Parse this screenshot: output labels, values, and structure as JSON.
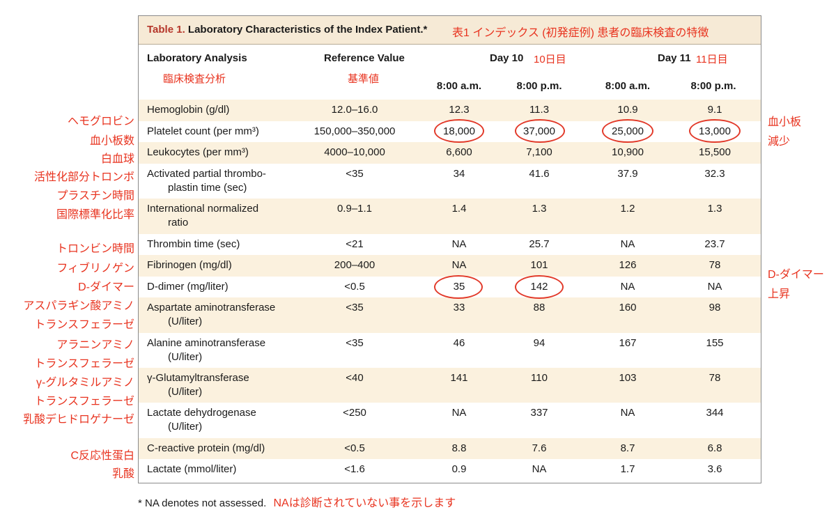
{
  "title": {
    "label": "Table 1.",
    "text": "Laboratory Characteristics of the Index Patient.*",
    "ja": "表1 インデックス (初発症例) 患者の臨床検査の特徴"
  },
  "headers": {
    "analysis": "Laboratory Analysis",
    "analysis_ja": "臨床検査分析",
    "reference": "Reference Value",
    "reference_ja": "基準値",
    "day10": "Day 10",
    "day10_ja": "10日目",
    "day11": "Day 11",
    "day11_ja": "11日目",
    "times": [
      "8:00 a.m.",
      "8:00 p.m.",
      "8:00 a.m.",
      "8:00 p.m."
    ]
  },
  "rows": [
    {
      "name": "Hemoglobin (g/dl)",
      "name2": "",
      "ref": "12.0–16.0",
      "v": [
        "12.3",
        "11.3",
        "10.9",
        "9.1"
      ]
    },
    {
      "name": "Platelet count (per mm³)",
      "name2": "",
      "ref": "150,000–350,000",
      "v": [
        "18,000",
        "37,000",
        "25,000",
        "13,000"
      ]
    },
    {
      "name": "Leukocytes (per mm³)",
      "name2": "",
      "ref": "4000–10,000",
      "v": [
        "6,600",
        "7,100",
        "10,900",
        "15,500"
      ]
    },
    {
      "name": "Activated partial thrombo-",
      "name2": "plastin time (sec)",
      "ref": "<35",
      "v": [
        "34",
        "41.6",
        "37.9",
        "32.3"
      ]
    },
    {
      "name": "International normalized",
      "name2": "ratio",
      "ref": "0.9–1.1",
      "v": [
        "1.4",
        "1.3",
        "1.2",
        "1.3"
      ]
    },
    {
      "name": "Thrombin time (sec)",
      "name2": "",
      "ref": "<21",
      "v": [
        "NA",
        "25.7",
        "NA",
        "23.7"
      ]
    },
    {
      "name": "Fibrinogen (mg/dl)",
      "name2": "",
      "ref": "200–400",
      "v": [
        "NA",
        "101",
        "126",
        "78"
      ]
    },
    {
      "name": "D-dimer (mg/liter)",
      "name2": "",
      "ref": "<0.5",
      "v": [
        "35",
        "142",
        "NA",
        "NA"
      ]
    },
    {
      "name": "Aspartate aminotransferase",
      "name2": "(U/liter)",
      "ref": "<35",
      "v": [
        "33",
        "88",
        "160",
        "98"
      ]
    },
    {
      "name": "Alanine aminotransferase",
      "name2": "(U/liter)",
      "ref": "<35",
      "v": [
        "46",
        "94",
        "167",
        "155"
      ]
    },
    {
      "name": "γ-Glutamyltransferase",
      "name2": "(U/liter)",
      "ref": "<40",
      "v": [
        "141",
        "110",
        "103",
        "78"
      ]
    },
    {
      "name": "Lactate dehydrogenase",
      "name2": "(U/liter)",
      "ref": "<250",
      "v": [
        "NA",
        "337",
        "NA",
        "344"
      ]
    },
    {
      "name": "C-reactive protein (mg/dl)",
      "name2": "",
      "ref": "<0.5",
      "v": [
        "8.8",
        "7.6",
        "8.7",
        "6.8"
      ]
    },
    {
      "name": "Lactate (mmol/liter)",
      "name2": "",
      "ref": "<1.6",
      "v": [
        "0.9",
        "NA",
        "1.7",
        "3.6"
      ]
    }
  ],
  "left_labels": [
    "ヘモグロビン",
    "血小板数",
    "白血球",
    "活性化部分トロンボ",
    "プラスチン時間",
    "国際標準化比率",
    "トロンビン時間",
    "フィブリノゲン",
    "D-ダイマー",
    "アスパラギン酸アミノ",
    "トランスフェラーゼ",
    "アラニンアミノ",
    "トランスフェラーゼ",
    "γ-グルタミルアミノ",
    "トランスフェラーゼ",
    "乳酸デヒドロゲナーゼ",
    "C反応性蛋白",
    "乳酸"
  ],
  "right_labels": {
    "platelet_1": "血小板",
    "platelet_2": "減少",
    "ddimer_1": "D-ダイマー",
    "ddimer_2": "上昇"
  },
  "footnote": {
    "text": "* NA denotes not assessed.",
    "ja": "NAは診断されていない事を示します"
  },
  "colors": {
    "annotation_red": "#e8331f",
    "row_shade": "#fbf1de",
    "title_bg": "#f6ead6"
  }
}
